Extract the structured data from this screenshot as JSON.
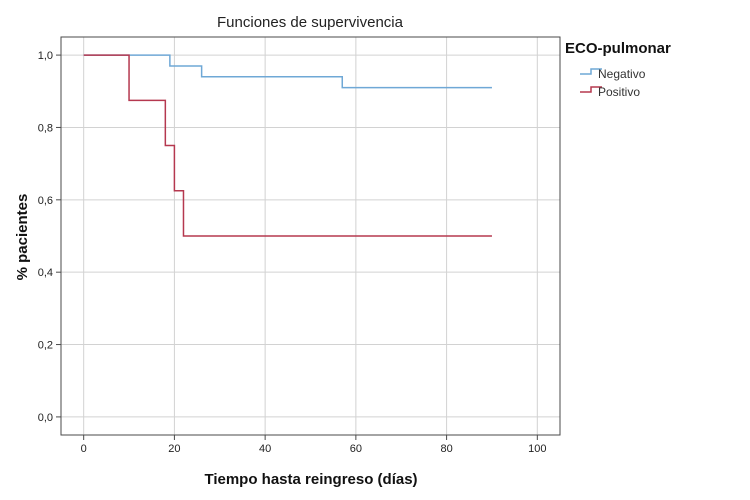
{
  "chart_data": {
    "type": "line",
    "step": true,
    "title": "Funciones de supervivencia",
    "xlabel": "Tiempo hasta reingreso (días)",
    "ylabel": "% pacientes",
    "xlim": [
      -5,
      105
    ],
    "ylim": [
      -0.05,
      1.05
    ],
    "xticks": [
      0,
      20,
      40,
      60,
      80,
      100
    ],
    "xtick_labels": [
      "0",
      "20",
      "40",
      "60",
      "80",
      "100"
    ],
    "yticks": [
      0.0,
      0.2,
      0.4,
      0.6,
      0.8,
      1.0
    ],
    "ytick_labels": [
      "0,0",
      "0,2",
      "0,4",
      "0,6",
      "0,8",
      "1,0"
    ],
    "grid": true,
    "legend": {
      "title": "ECO-pulmonar",
      "position": "right"
    },
    "series": [
      {
        "name": "Negativo",
        "color": "#6fa8d6",
        "x": [
          0,
          19,
          26,
          57,
          90
        ],
        "y": [
          1.0,
          0.97,
          0.94,
          0.91,
          0.91
        ]
      },
      {
        "name": "Positivo",
        "color": "#b5384f",
        "x": [
          0,
          10,
          18,
          20,
          22,
          90
        ],
        "y": [
          1.0,
          0.875,
          0.75,
          0.625,
          0.5,
          0.5
        ]
      }
    ]
  }
}
